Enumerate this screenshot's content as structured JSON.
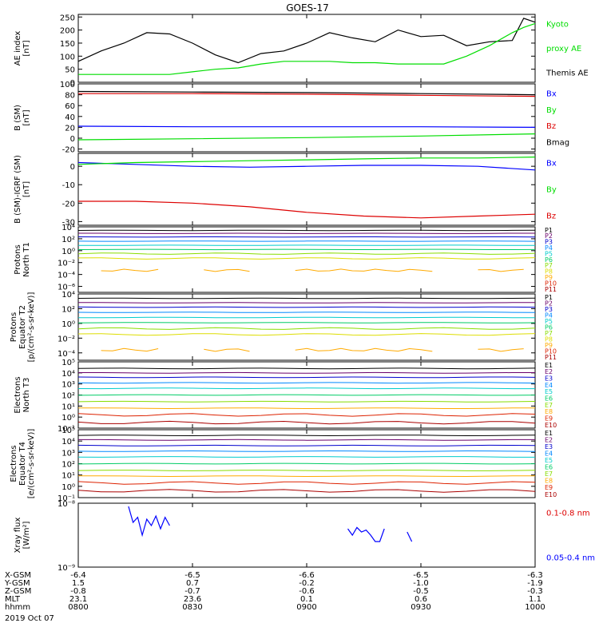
{
  "title": "GOES-17",
  "date_label": "2019 Oct 07",
  "footer": {
    "row_labels": [
      "X-GSM",
      "Y-GSM",
      "Z-GSM",
      "MLT",
      "hhmm"
    ],
    "columns": [
      {
        "values": [
          "-6.4",
          "1.5",
          "-0.8",
          "23.1",
          "0800"
        ]
      },
      {
        "values": [
          "-6.5",
          "0.7",
          "-0.7",
          "23.6",
          "0830"
        ]
      },
      {
        "values": [
          "-6.6",
          "-0.2",
          "-0.6",
          "0.1",
          "0900"
        ]
      },
      {
        "values": [
          "-6.5",
          "-1.0",
          "-0.5",
          "0.6",
          "0930"
        ]
      },
      {
        "values": [
          "-6.3",
          "-1.9",
          "-0.3",
          "1.1",
          "1000"
        ]
      }
    ]
  },
  "colors": {
    "black": "#000000",
    "blue": "#0000ff",
    "green": "#00dd00",
    "red": "#dd0000"
  },
  "chart_data": [
    {
      "id": "ae",
      "type": "line",
      "ylabel": [
        "AE index",
        "[nT]"
      ],
      "ylim": [
        0,
        260
      ],
      "ticks": [
        "0",
        "50",
        "100",
        "150",
        "200",
        "250"
      ],
      "tick_values": [
        0,
        50,
        100,
        150,
        200,
        250
      ],
      "x_hours": [
        8.0,
        8.1,
        8.2,
        8.3,
        8.4,
        8.5,
        8.6,
        8.7,
        8.8,
        8.9,
        9.0,
        9.1,
        9.2,
        9.3,
        9.4,
        9.5,
        9.6,
        9.7,
        9.8,
        9.9,
        9.95,
        10.0
      ],
      "series": [
        {
          "name": "Themis AE",
          "color": "black",
          "values": [
            80,
            120,
            150,
            190,
            185,
            150,
            105,
            75,
            110,
            120,
            150,
            190,
            170,
            155,
            200,
            175,
            180,
            140,
            155,
            160,
            245,
            230
          ]
        },
        {
          "name": "Kyoto proxy AE",
          "color": "green",
          "values": [
            30,
            30,
            30,
            30,
            30,
            40,
            50,
            55,
            70,
            80,
            80,
            80,
            75,
            75,
            70,
            70,
            70,
            100,
            140,
            190,
            210,
            225
          ]
        }
      ],
      "legend": [
        {
          "text": "Kyoto",
          "color": "green"
        },
        {
          "text": "proxy AE",
          "color": "green"
        },
        {
          "text": "Themis AE",
          "color": "black"
        }
      ]
    },
    {
      "id": "bsm",
      "type": "line",
      "ylabel": [
        "B (SM)",
        "[nT]"
      ],
      "ylim": [
        -25,
        100
      ],
      "ticks": [
        "-20",
        "0",
        "20",
        "40",
        "60",
        "80",
        "100"
      ],
      "tick_values": [
        -20,
        0,
        20,
        40,
        60,
        80,
        100
      ],
      "x_hours": [
        8.0,
        8.5,
        9.0,
        9.5,
        10.0
      ],
      "series": [
        {
          "name": "Bmag",
          "color": "black",
          "values": [
            86,
            85,
            84,
            82,
            80
          ]
        },
        {
          "name": "Bz",
          "color": "red",
          "values": [
            82,
            82,
            81,
            79,
            77
          ]
        },
        {
          "name": "Bx",
          "color": "blue",
          "values": [
            22,
            21,
            21,
            21,
            20
          ]
        },
        {
          "name": "By",
          "color": "green",
          "values": [
            -3,
            -1,
            1,
            4,
            8
          ]
        }
      ],
      "legend": [
        {
          "text": "Bx",
          "color": "blue"
        },
        {
          "text": "By",
          "color": "green"
        },
        {
          "text": "Bz",
          "color": "red"
        },
        {
          "text": "Bmag",
          "color": "black"
        }
      ]
    },
    {
      "id": "bigrf",
      "type": "line",
      "ylabel": [
        "B (SM)-IGRF (SM)",
        "[nT]"
      ],
      "ylim": [
        -32,
        7
      ],
      "ticks": [
        "-30",
        "-20",
        "-10",
        "0"
      ],
      "tick_values": [
        -30,
        -20,
        -10,
        0
      ],
      "x_hours": [
        8.0,
        8.25,
        8.5,
        8.75,
        9.0,
        9.25,
        9.5,
        9.75,
        10.0
      ],
      "series": [
        {
          "name": "Bx",
          "color": "blue",
          "values": [
            2,
            1,
            0,
            -0.5,
            0,
            0.5,
            0.5,
            0,
            -2
          ]
        },
        {
          "name": "By",
          "color": "green",
          "values": [
            1,
            2,
            2.5,
            3,
            3.5,
            4,
            4.5,
            4.5,
            5
          ]
        },
        {
          "name": "Bz",
          "color": "red",
          "values": [
            -19,
            -19,
            -20,
            -22,
            -25,
            -27,
            -28,
            -27,
            -26
          ]
        }
      ],
      "legend": [
        {
          "text": "Bx",
          "color": "blue"
        },
        {
          "text": "By",
          "color": "green"
        },
        {
          "text": "Bz",
          "color": "red"
        }
      ]
    },
    {
      "id": "pnt1",
      "type": "line",
      "log": true,
      "ylabel": [
        "Protons",
        "North T1"
      ],
      "ylim": [
        -7,
        4
      ],
      "ticks": [
        "10⁴",
        "10²",
        "10⁰",
        "10⁻²",
        "10⁻⁴",
        "10⁻⁶"
      ],
      "tick_values": [
        4,
        2,
        0,
        -2,
        -4,
        -6
      ],
      "levels": [
        3.4,
        2.9,
        2.3,
        1.6,
        0.9,
        0.2,
        -0.5,
        -1.3
      ],
      "level_colors": [
        "#000000",
        "#6a006a",
        "#0000cc",
        "#0088ff",
        "#00cccc",
        "#00cc66",
        "#88dd00",
        "#dddd00"
      ],
      "sparse_series": {
        "name": "P8",
        "color": "#ffaa00",
        "value": -3.3
      },
      "legend": [
        {
          "text": "P1",
          "color": "#000000"
        },
        {
          "text": "P2",
          "color": "#6a006a"
        },
        {
          "text": "P3",
          "color": "#0000cc"
        },
        {
          "text": "P4",
          "color": "#0088ff"
        },
        {
          "text": "P5",
          "color": "#00cccc"
        },
        {
          "text": "P6",
          "color": "#00cc66"
        },
        {
          "text": "P7",
          "color": "#88dd00"
        },
        {
          "text": "P8",
          "color": "#dddd00"
        },
        {
          "text": "P9",
          "color": "#ffaa00"
        },
        {
          "text": "P10",
          "color": "#dd2200"
        },
        {
          "text": "P11",
          "color": "#aa0000"
        }
      ]
    },
    {
      "id": "pet2",
      "type": "line",
      "log": true,
      "ylabel": [
        "Protons",
        "Equator T2",
        "[p/(cm²-s-sr-keV)]"
      ],
      "ylim": [
        -5,
        4
      ],
      "ticks": [
        "10⁴",
        "10²",
        "10⁰",
        "10⁻²",
        "10⁻⁴"
      ],
      "tick_values": [
        4,
        2,
        0,
        -2,
        -4
      ],
      "levels": [
        3.4,
        2.8,
        2.2,
        1.5,
        0.8,
        0.1,
        -0.7,
        -1.5
      ],
      "level_colors": [
        "#000000",
        "#6a006a",
        "#0000cc",
        "#0088ff",
        "#00cccc",
        "#00cc66",
        "#88dd00",
        "#dddd00"
      ],
      "sparse_series": {
        "name": "P8",
        "color": "#ffaa00",
        "value": -3.6
      },
      "legend": [
        {
          "text": "P1",
          "color": "#000000"
        },
        {
          "text": "P2",
          "color": "#6a006a"
        },
        {
          "text": "P3",
          "color": "#0000cc"
        },
        {
          "text": "P4",
          "color": "#0088ff"
        },
        {
          "text": "P5",
          "color": "#00cccc"
        },
        {
          "text": "P6",
          "color": "#00cc66"
        },
        {
          "text": "P7",
          "color": "#88dd00"
        },
        {
          "text": "P8",
          "color": "#dddd00"
        },
        {
          "text": "P9",
          "color": "#ffaa00"
        },
        {
          "text": "P10",
          "color": "#dd2200"
        },
        {
          "text": "P11",
          "color": "#aa0000"
        }
      ]
    },
    {
      "id": "ent3",
      "type": "line",
      "log": true,
      "ylabel": [
        "Electrons",
        "North T3"
      ],
      "ylim": [
        -1,
        5
      ],
      "ticks": [
        "10⁵",
        "10⁴",
        "10³",
        "10²",
        "10¹",
        "10⁰",
        "10⁻¹"
      ],
      "tick_values": [
        5,
        4,
        3,
        2,
        1,
        0,
        -1
      ],
      "levels": [
        4.4,
        4.0,
        3.6,
        3.1,
        2.6,
        2.0,
        1.4,
        0.8,
        0.2,
        -0.5
      ],
      "level_colors": [
        "#000000",
        "#6a006a",
        "#0000cc",
        "#0088ff",
        "#00cccc",
        "#00cc66",
        "#88dd00",
        "#ffaa00",
        "#dd2200",
        "#aa0000"
      ],
      "legend": [
        {
          "text": "E1",
          "color": "#000000"
        },
        {
          "text": "E2",
          "color": "#6a006a"
        },
        {
          "text": "E3",
          "color": "#0000cc"
        },
        {
          "text": "E4",
          "color": "#0088ff"
        },
        {
          "text": "E5",
          "color": "#00cccc"
        },
        {
          "text": "E6",
          "color": "#00cc66"
        },
        {
          "text": "E7",
          "color": "#88dd00"
        },
        {
          "text": "E8",
          "color": "#ffaa00"
        },
        {
          "text": "E9",
          "color": "#dd2200"
        },
        {
          "text": "E10",
          "color": "#aa0000"
        }
      ]
    },
    {
      "id": "eet4",
      "type": "line",
      "log": true,
      "ylabel": [
        "Electrons",
        "Equator T4",
        "[e/(cm²-s-sr-keV)]"
      ],
      "ylim": [
        -1,
        5
      ],
      "ticks": [
        "10⁵",
        "10⁴",
        "10³",
        "10²",
        "10¹",
        "10⁰",
        "10⁻¹"
      ],
      "tick_values": [
        5,
        4,
        3,
        2,
        1,
        0,
        -1
      ],
      "levels": [
        4.5,
        4.1,
        3.6,
        3.1,
        2.6,
        2.0,
        1.4,
        0.9,
        0.3,
        -0.4
      ],
      "level_colors": [
        "#000000",
        "#6a006a",
        "#0000cc",
        "#0088ff",
        "#00cccc",
        "#00cc66",
        "#88dd00",
        "#ffaa00",
        "#dd2200",
        "#aa0000"
      ],
      "legend": [
        {
          "text": "E1",
          "color": "#000000"
        },
        {
          "text": "E2",
          "color": "#6a006a"
        },
        {
          "text": "E3",
          "color": "#0000cc"
        },
        {
          "text": "E4",
          "color": "#0088ff"
        },
        {
          "text": "E5",
          "color": "#00cccc"
        },
        {
          "text": "E6",
          "color": "#00cc66"
        },
        {
          "text": "E7",
          "color": "#88dd00"
        },
        {
          "text": "E8",
          "color": "#ffaa00"
        },
        {
          "text": "E9",
          "color": "#dd2200"
        },
        {
          "text": "E10",
          "color": "#aa0000"
        }
      ]
    },
    {
      "id": "xray",
      "type": "line",
      "log": true,
      "ylabel": [
        "Xray flux",
        "[W/m²]"
      ],
      "ylim": [
        -9,
        -8
      ],
      "ticks": [
        "10⁻⁸",
        "10⁻⁹"
      ],
      "tick_values": [
        -8,
        -9
      ],
      "segments": [
        {
          "name": "0.05-0.4 nm",
          "color": "blue",
          "x_hours": [
            8.22,
            8.24,
            8.26,
            8.28,
            8.3,
            8.32,
            8.34,
            8.36,
            8.38,
            8.4
          ],
          "values": [
            -8.05,
            -8.3,
            -8.22,
            -8.5,
            -8.25,
            -8.35,
            -8.2,
            -8.4,
            -8.22,
            -8.35
          ]
        },
        {
          "name": "0.05-0.4 nm",
          "color": "blue",
          "x_hours": [
            9.18,
            9.2,
            9.22,
            9.24,
            9.26,
            9.28,
            9.3,
            9.32,
            9.34
          ],
          "values": [
            -8.4,
            -8.5,
            -8.38,
            -8.45,
            -8.42,
            -8.5,
            -8.6,
            -8.6,
            -8.4
          ]
        },
        {
          "name": "0.05-0.4 nm",
          "color": "blue",
          "x_hours": [
            9.44,
            9.46
          ],
          "values": [
            -8.45,
            -8.6
          ]
        }
      ],
      "legend": [
        {
          "text": "0.1-0.8 nm",
          "color": "red"
        },
        {
          "text": "0.05-0.4 nm",
          "color": "blue"
        }
      ]
    }
  ]
}
